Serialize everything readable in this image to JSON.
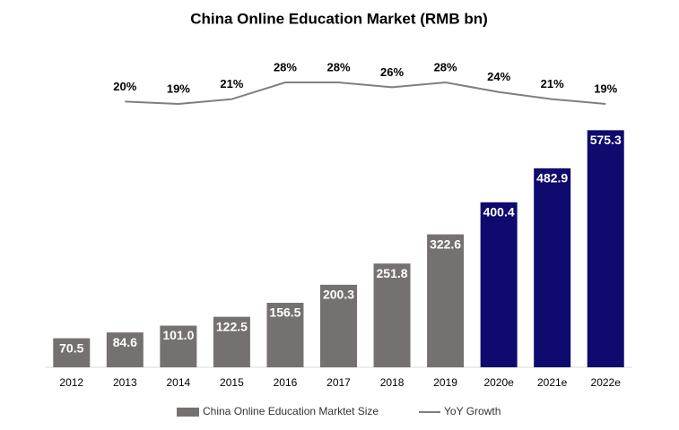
{
  "chart_data": {
    "type": "bar+line",
    "title": "China Online Education Market (RMB bn)",
    "categories": [
      "2012",
      "2013",
      "2014",
      "2015",
      "2016",
      "2017",
      "2018",
      "2019",
      "2020e",
      "2021e",
      "2022e"
    ],
    "series": [
      {
        "name": "China Online Education Marktet Size",
        "type": "bar",
        "colors": [
          "#767171",
          "#767171",
          "#767171",
          "#767171",
          "#767171",
          "#767171",
          "#767171",
          "#767171",
          "#0f0a6e",
          "#0f0a6e",
          "#0f0a6e"
        ],
        "values": [
          70.5,
          84.6,
          101.0,
          122.5,
          156.5,
          200.3,
          251.8,
          322.6,
          400.4,
          482.9,
          575.3
        ],
        "value_labels": [
          "70.5",
          "84.6",
          "101.0",
          "122.5",
          "156.5",
          "200.3",
          "251.8",
          "322.6",
          "400.4",
          "482.9",
          "575.3"
        ]
      },
      {
        "name": "YoY Growth",
        "type": "line",
        "axis": "y2",
        "color": "#7f7f7f",
        "values": [
          null,
          20,
          19,
          21,
          28,
          28,
          26,
          28,
          24,
          21,
          19
        ],
        "value_labels": [
          null,
          "20%",
          "19%",
          "21%",
          "28%",
          "28%",
          "26%",
          "28%",
          "24%",
          "21%",
          "19%"
        ]
      }
    ],
    "ylim": [
      0,
      600
    ],
    "y2lim": [
      0,
      30
    ],
    "legend": "bottom"
  }
}
